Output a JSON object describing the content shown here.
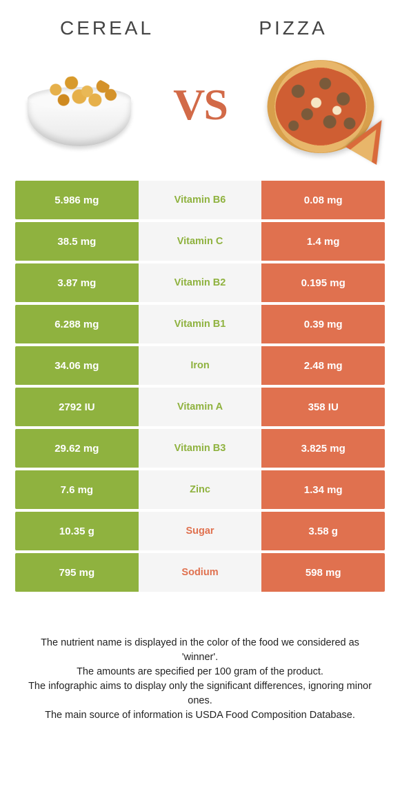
{
  "header": {
    "left_title": "CEREAL",
    "right_title": "PIZZA",
    "vs": "VS"
  },
  "colors": {
    "left": "#8fb23f",
    "right": "#e0714f",
    "mid_bg": "#f5f5f5",
    "text_white": "#ffffff"
  },
  "comparison": {
    "rows": [
      {
        "left": "5.986 mg",
        "label": "Vitamin B6",
        "right": "0.08 mg",
        "winner": "left"
      },
      {
        "left": "38.5 mg",
        "label": "Vitamin C",
        "right": "1.4 mg",
        "winner": "left"
      },
      {
        "left": "3.87 mg",
        "label": "Vitamin B2",
        "right": "0.195 mg",
        "winner": "left"
      },
      {
        "left": "6.288 mg",
        "label": "Vitamin B1",
        "right": "0.39 mg",
        "winner": "left"
      },
      {
        "left": "34.06 mg",
        "label": "Iron",
        "right": "2.48 mg",
        "winner": "left"
      },
      {
        "left": "2792 IU",
        "label": "Vitamin A",
        "right": "358 IU",
        "winner": "left"
      },
      {
        "left": "29.62 mg",
        "label": "Vitamin B3",
        "right": "3.825 mg",
        "winner": "left"
      },
      {
        "left": "7.6 mg",
        "label": "Zinc",
        "right": "1.34 mg",
        "winner": "left"
      },
      {
        "left": "10.35 g",
        "label": "Sugar",
        "right": "3.58 g",
        "winner": "right"
      },
      {
        "left": "795 mg",
        "label": "Sodium",
        "right": "598 mg",
        "winner": "right"
      }
    ]
  },
  "footer": {
    "line1": "The nutrient name is displayed in the color of the food we considered as 'winner'.",
    "line2": "The amounts are specified per 100 gram of the product.",
    "line3": "The infographic aims to display only the significant differences, ignoring minor ones.",
    "line4": "The main source of information is USDA Food Composition Database."
  }
}
